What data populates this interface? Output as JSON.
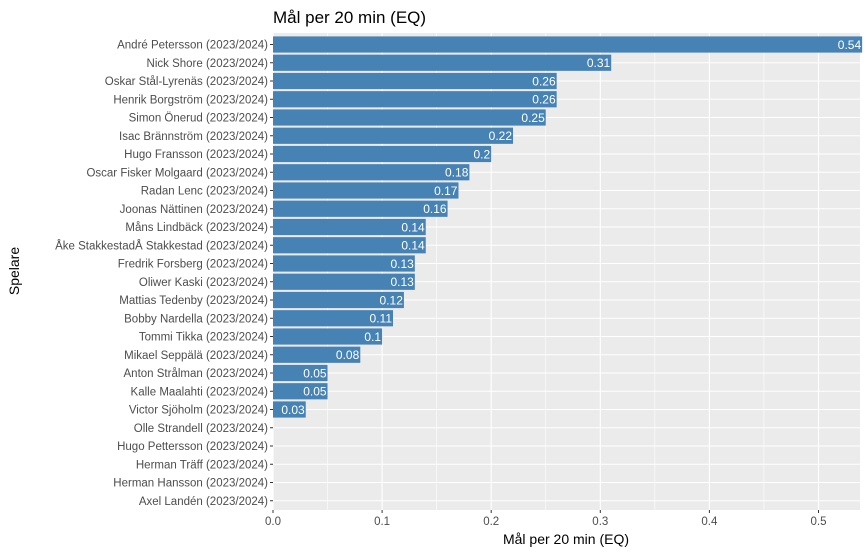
{
  "chart_data": {
    "type": "bar",
    "orientation": "horizontal",
    "title": "Mål per 20 min (EQ)",
    "xlabel": "Mål per 20 min (EQ)",
    "ylabel": "Spelare",
    "xlim": [
      0,
      0.54
    ],
    "x_ticks": [
      "0.0",
      "0.1",
      "0.2",
      "0.3",
      "0.4",
      "0.5"
    ],
    "grid": true,
    "legend": "none",
    "bar_color": "#4682b4",
    "panel_color": "#ebebeb",
    "categories": [
      "André Petersson (2023/2024)",
      "Nick Shore (2023/2024)",
      "Oskar Stål-Lyrenäs (2023/2024)",
      "Henrik Borgström (2023/2024)",
      "Simon Önerud (2023/2024)",
      "Isac Brännström (2023/2024)",
      "Hugo Fransson (2023/2024)",
      "Oscar Fisker Molgaard (2023/2024)",
      "Radan Lenc (2023/2024)",
      "Joonas Nättinen (2023/2024)",
      "Måns Lindbäck (2023/2024)",
      "Åke StakkestadÅ Stakkestad (2023/2024)",
      "Fredrik Forsberg (2023/2024)",
      "Oliwer Kaski (2023/2024)",
      "Mattias Tedenby (2023/2024)",
      "Bobby Nardella (2023/2024)",
      "Tommi Tikka (2023/2024)",
      "Mikael Seppälä (2023/2024)",
      "Anton Strålman (2023/2024)",
      "Kalle Maalahti (2023/2024)",
      "Victor Sjöholm (2023/2024)",
      "Olle Strandell (2023/2024)",
      "Hugo Pettersson (2023/2024)",
      "Herman Träff (2023/2024)",
      "Herman Hansson (2023/2024)",
      "Axel Landén (2023/2024)"
    ],
    "values": [
      0.54,
      0.31,
      0.26,
      0.26,
      0.25,
      0.22,
      0.2,
      0.18,
      0.17,
      0.16,
      0.14,
      0.14,
      0.13,
      0.13,
      0.12,
      0.11,
      0.1,
      0.08,
      0.05,
      0.05,
      0.03,
      null,
      null,
      null,
      null,
      null
    ],
    "value_labels": [
      "0.54",
      "0.31",
      "0.26",
      "0.26",
      "0.25",
      "0.22",
      "0.2",
      "0.18",
      "0.17",
      "0.16",
      "0.14",
      "0.14",
      "0.13",
      "0.13",
      "0.12",
      "0.11",
      "0.1",
      "0.08",
      "0.05",
      "0.05",
      "0.03",
      "",
      "",
      "",
      "",
      ""
    ]
  }
}
